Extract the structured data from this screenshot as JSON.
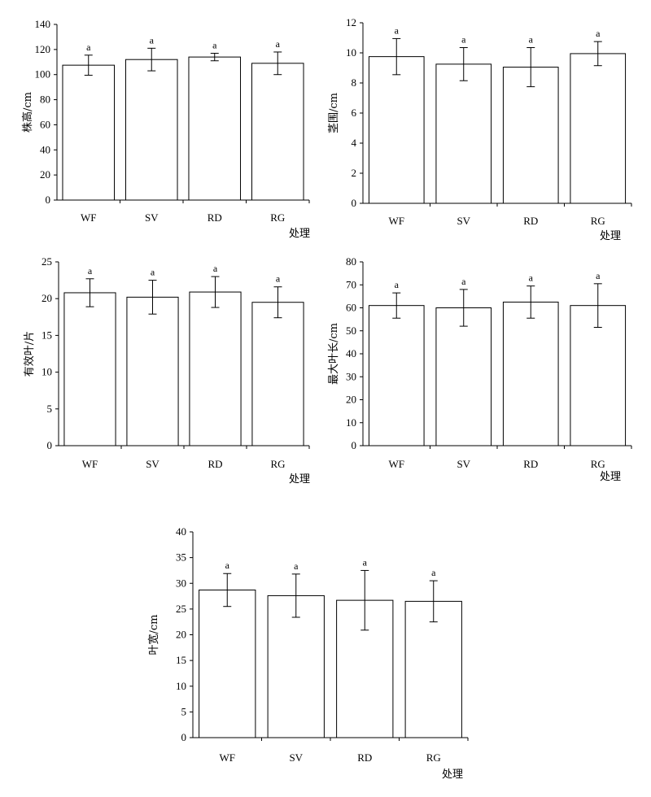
{
  "chart_data": [
    {
      "type": "bar",
      "categories": [
        "WF",
        "SV",
        "RD",
        "RG"
      ],
      "values": [
        107.5,
        112,
        114,
        109
      ],
      "errors": [
        8,
        9,
        3,
        9
      ],
      "significance": [
        "a",
        "a",
        "a",
        "a"
      ],
      "ylabel": "株高/cm",
      "xlabel": "处理",
      "ylim": [
        0,
        140
      ],
      "yticks": [
        0,
        20,
        40,
        60,
        80,
        100,
        120,
        140
      ],
      "colors": {
        "bar_fill": "#ffffff",
        "stroke": "#000000"
      }
    },
    {
      "type": "bar",
      "categories": [
        "WF",
        "SV",
        "RD",
        "RG"
      ],
      "values": [
        9.75,
        9.25,
        9.05,
        9.95
      ],
      "errors": [
        1.2,
        1.1,
        1.3,
        0.8
      ],
      "significance": [
        "a",
        "a",
        "a",
        "a"
      ],
      "ylabel": "茎围/cm",
      "xlabel": "处理",
      "ylim": [
        0,
        12
      ],
      "yticks": [
        0,
        2,
        4,
        6,
        8,
        10,
        12
      ],
      "colors": {
        "bar_fill": "#ffffff",
        "stroke": "#000000"
      }
    },
    {
      "type": "bar",
      "categories": [
        "WF",
        "SV",
        "RD",
        "RG"
      ],
      "values": [
        20.8,
        20.2,
        20.9,
        19.5
      ],
      "errors": [
        1.9,
        2.3,
        2.1,
        2.1
      ],
      "significance": [
        "a",
        "a",
        "a",
        "a"
      ],
      "ylabel": "有效叶/片",
      "xlabel": "处理",
      "ylim": [
        0,
        25
      ],
      "yticks": [
        0,
        5,
        10,
        15,
        20,
        25
      ],
      "colors": {
        "bar_fill": "#ffffff",
        "stroke": "#000000"
      }
    },
    {
      "type": "bar",
      "categories": [
        "WF",
        "SV",
        "RD",
        "RG"
      ],
      "values": [
        61,
        60,
        62.5,
        61
      ],
      "errors": [
        5.5,
        8,
        7,
        9.5
      ],
      "significance": [
        "a",
        "a",
        "a",
        "a"
      ],
      "ylabel": "最大叶长/cm",
      "xlabel": "处理",
      "ylim": [
        0,
        80
      ],
      "yticks": [
        0,
        10,
        20,
        30,
        40,
        50,
        60,
        70,
        80
      ],
      "colors": {
        "bar_fill": "#ffffff",
        "stroke": "#000000"
      }
    },
    {
      "type": "bar",
      "categories": [
        "WF",
        "SV",
        "RD",
        "RG"
      ],
      "values": [
        28.7,
        27.6,
        26.7,
        26.5
      ],
      "errors": [
        3.2,
        4.2,
        5.8,
        4.0
      ],
      "significance": [
        "a",
        "a",
        "a",
        "a"
      ],
      "ylabel": "叶宽/cm",
      "xlabel": "处理",
      "ylim": [
        0,
        40
      ],
      "yticks": [
        0,
        5,
        10,
        15,
        20,
        25,
        30,
        35,
        40
      ],
      "colors": {
        "bar_fill": "#ffffff",
        "stroke": "#000000"
      }
    }
  ]
}
